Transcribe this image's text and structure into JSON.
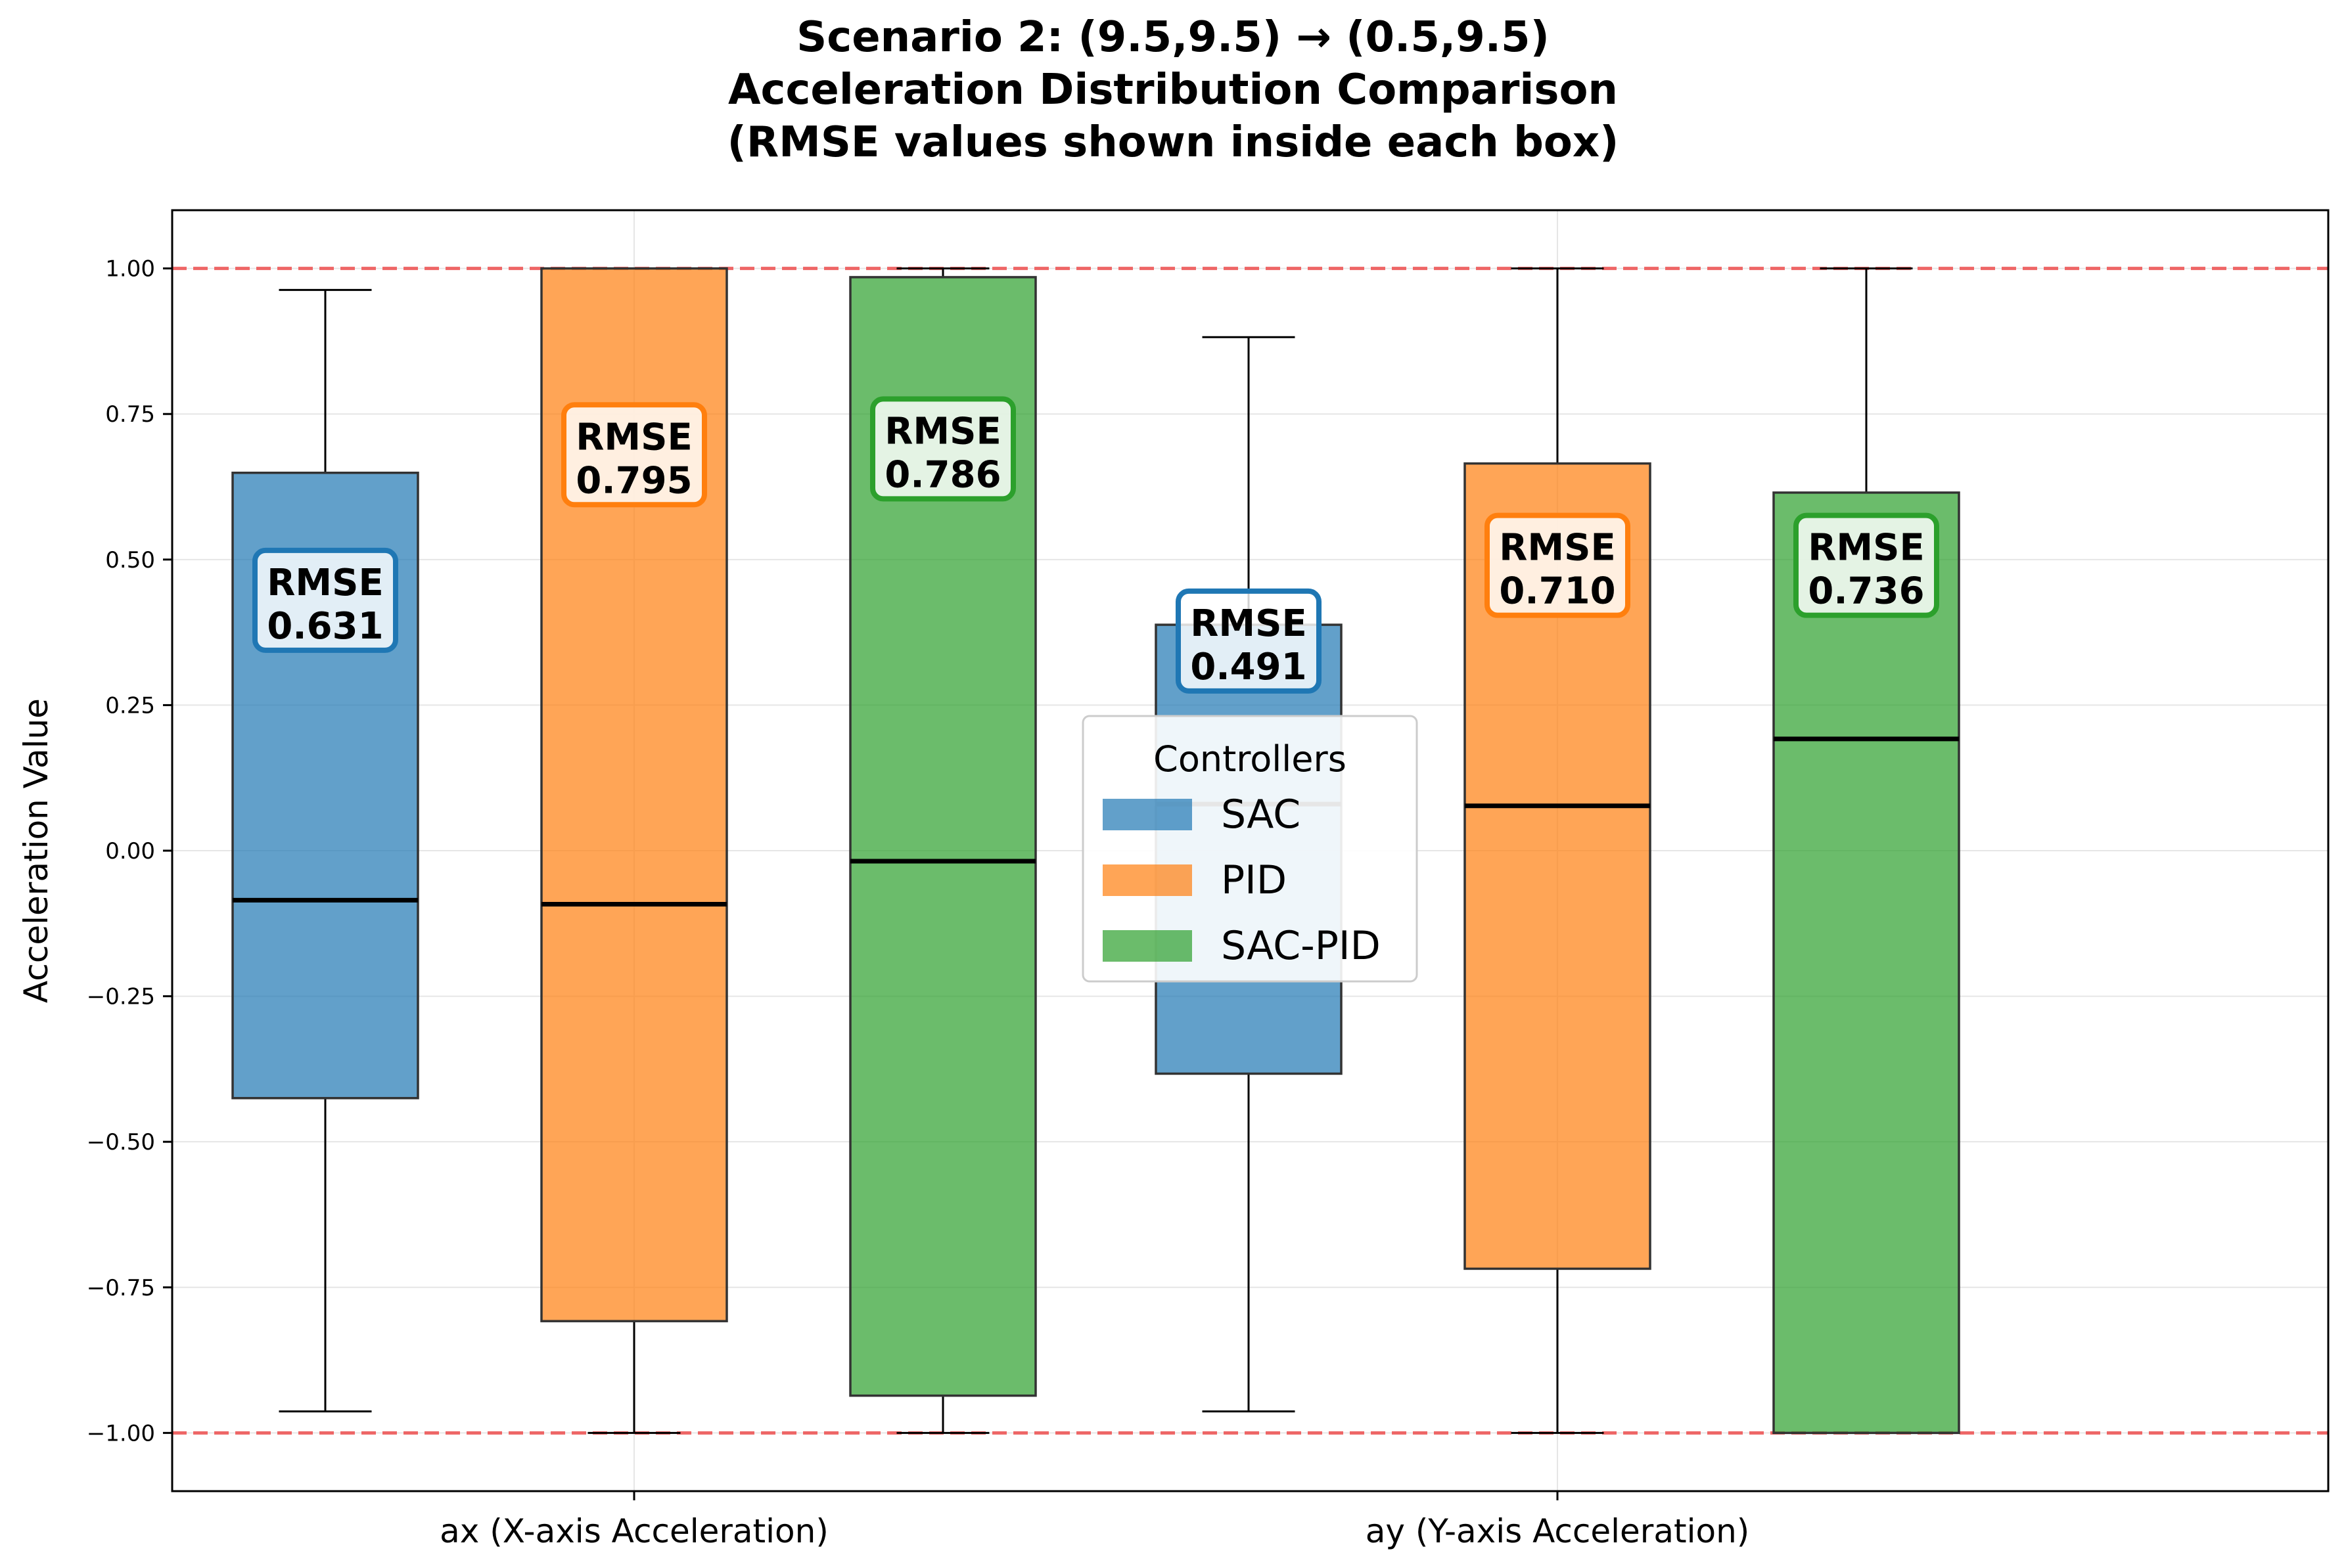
{
  "chart_data": {
    "type": "box",
    "title_lines": [
      "Scenario 2: (9.5,9.5) → (0.5,9.5)",
      "Acceleration Distribution Comparison",
      "(RMSE values shown inside each box)"
    ],
    "xlabel": "",
    "ylabel": "Acceleration Value",
    "ylim": [
      -1.1,
      1.1
    ],
    "yticks": [
      -1.0,
      -0.75,
      -0.5,
      -0.25,
      0.0,
      0.25,
      0.5,
      0.75,
      1.0
    ],
    "ytick_labels": [
      "−1.00",
      "−0.75",
      "−0.50",
      "−0.25",
      "0.00",
      "0.25",
      "0.50",
      "0.75",
      "1.00"
    ],
    "reference_lines": [
      1.0,
      -1.0
    ],
    "reference_line_color": "#ee6666",
    "grid": true,
    "categories": [
      "ax (X-axis Acceleration)",
      "ay (Y-axis Acceleration)"
    ],
    "series": [
      {
        "name": "SAC",
        "color": "#1f77b4",
        "stats": [
          {
            "whislo": -0.963,
            "q1": -0.425,
            "med": -0.085,
            "q3": 0.649,
            "whishi": 0.963
          },
          {
            "whislo": -0.963,
            "q1": -0.383,
            "med": 0.08,
            "q3": 0.388,
            "whishi": 0.882
          }
        ],
        "rmse": [
          "0.631",
          "0.491"
        ]
      },
      {
        "name": "PID",
        "color": "#ff7f0e",
        "stats": [
          {
            "whislo": -1.0,
            "q1": -0.808,
            "med": -0.092,
            "q3": 1.0,
            "whishi": 1.0
          },
          {
            "whislo": -1.0,
            "q1": -0.718,
            "med": 0.077,
            "q3": 0.665,
            "whishi": 1.0
          }
        ],
        "rmse": [
          "0.795",
          "0.710"
        ]
      },
      {
        "name": "SAC-PID",
        "color": "#2ca02c",
        "stats": [
          {
            "whislo": -1.0,
            "q1": -0.936,
            "med": -0.018,
            "q3": 0.985,
            "whishi": 1.0
          },
          {
            "whislo": -1.0,
            "q1": -1.0,
            "med": 0.192,
            "q3": 0.615,
            "whishi": 1.0
          }
        ],
        "rmse": [
          "0.786",
          "0.736"
        ]
      }
    ],
    "rmse_prefix": "RMSE",
    "rmse_label_y": [
      [
        0.43,
        0.36
      ],
      [
        0.68,
        0.49
      ],
      [
        0.69,
        0.49
      ]
    ],
    "legend": {
      "title": "Controllers",
      "placement": "center",
      "entries": [
        "SAC",
        "PID",
        "SAC-PID"
      ]
    }
  }
}
